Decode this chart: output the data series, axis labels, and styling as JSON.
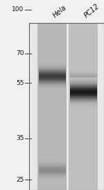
{
  "title": "",
  "lane_labels": [
    "Hela",
    "PC12"
  ],
  "mw_markers": [
    100,
    70,
    55,
    35,
    25
  ],
  "outer_bg": "#f0f0f0",
  "gel_bg": "#c8c8c8",
  "lane1_bg": "#b8b8b8",
  "lane2_bg": "#c0c0c0",
  "bands": [
    {
      "lane": 1,
      "mw": 58,
      "intensity": 0.8,
      "sigma": 0.025,
      "color": 30
    },
    {
      "lane": 1,
      "mw": 27,
      "intensity": 0.45,
      "sigma": 0.02,
      "color": 80
    },
    {
      "lane": 2,
      "mw": 57,
      "intensity": 0.4,
      "sigma": 0.018,
      "color": 100
    },
    {
      "lane": 2,
      "mw": 51,
      "intensity": 0.95,
      "sigma": 0.028,
      "color": 15
    }
  ],
  "fig_width": 1.5,
  "fig_height": 2.73,
  "dpi": 100,
  "mw_min": 23,
  "mw_max": 108,
  "label_fontsize": 7.0,
  "marker_fontsize": 6.5
}
